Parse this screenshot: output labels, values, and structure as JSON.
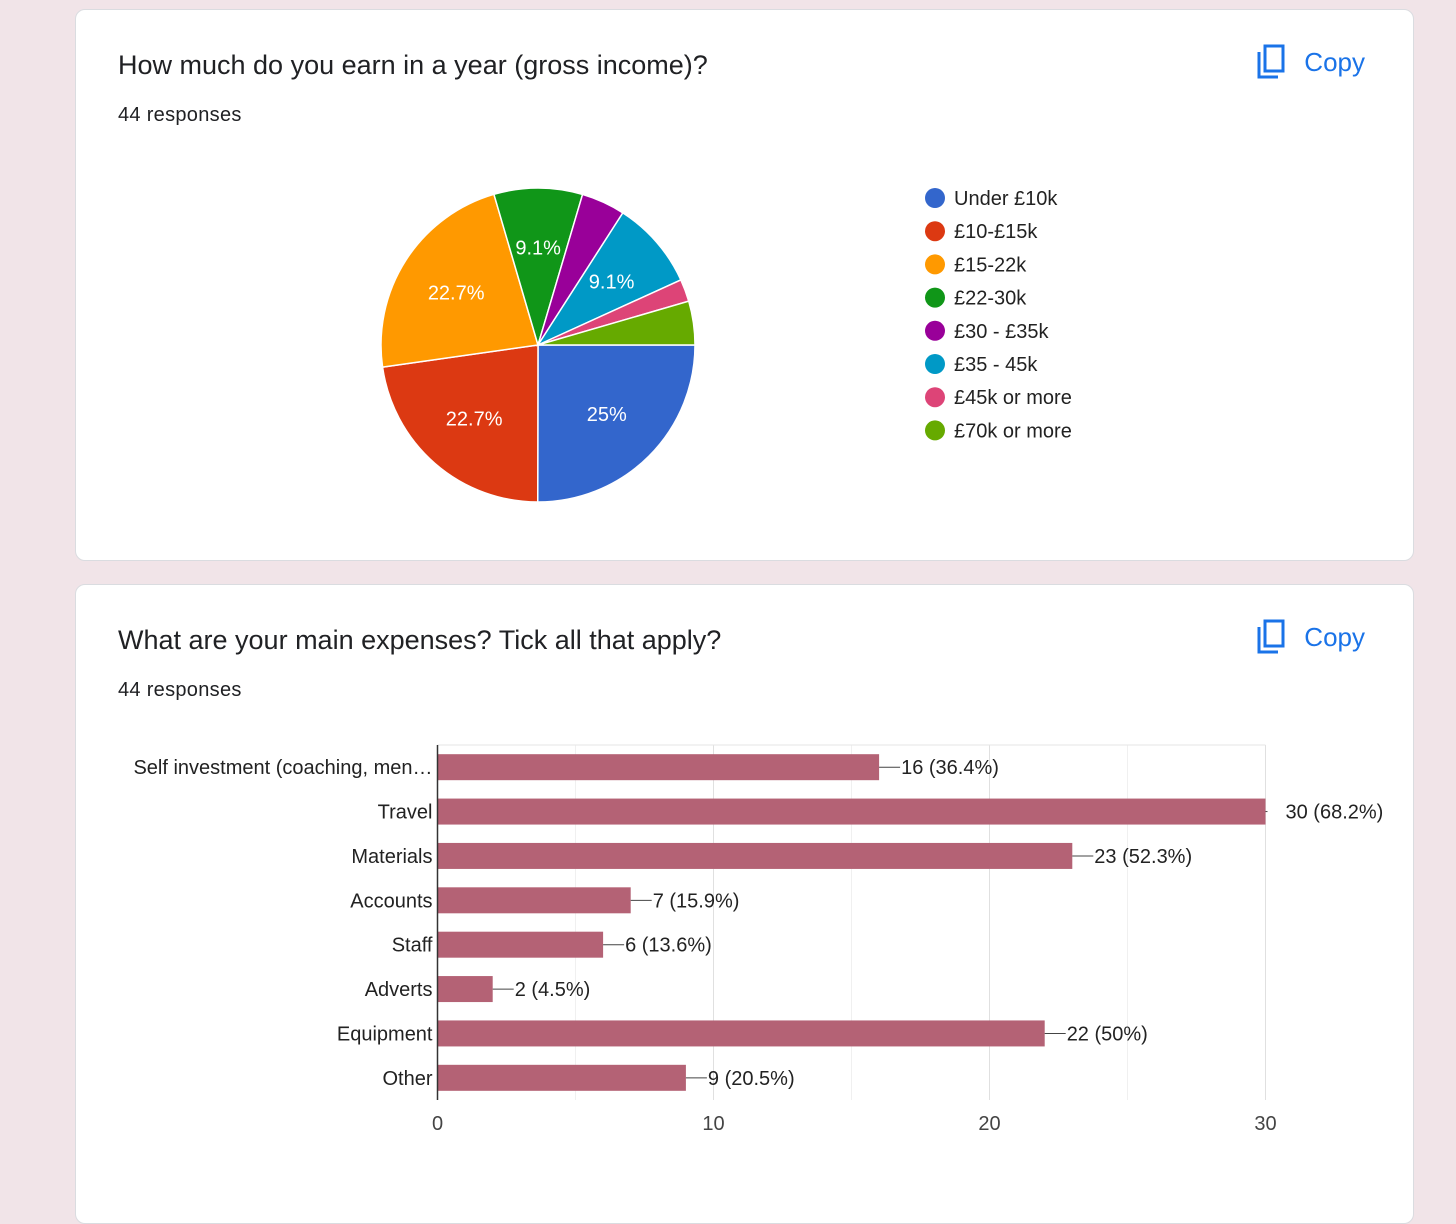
{
  "cards": [
    {
      "title": "How much do you earn in a year (gross income)?",
      "responses": "44 responses",
      "copy_label": "Copy",
      "icon": "content-copy-icon"
    },
    {
      "title": "What are your main expenses? Tick all that apply?",
      "responses": "44 responses",
      "copy_label": "Copy",
      "icon": "content-copy-icon"
    }
  ],
  "chart_data": [
    {
      "type": "pie",
      "slices": [
        {
          "label": "Under £10k",
          "value": 25.0,
          "data_label": "25%",
          "color": "#3366cc"
        },
        {
          "label": "£10-£15k",
          "value": 22.7,
          "data_label": "22.7%",
          "color": "#dc3912"
        },
        {
          "label": "£15-22k",
          "value": 22.7,
          "data_label": "22.7%",
          "color": "#ff9900"
        },
        {
          "label": "£22-30k",
          "value": 9.1,
          "data_label": "9.1%",
          "color": "#109618"
        },
        {
          "label": "£30 - £35k",
          "value": 4.5,
          "data_label": "",
          "color": "#990099"
        },
        {
          "label": "£35 - 45k",
          "value": 9.1,
          "data_label": "9.1%",
          "color": "#0099c6"
        },
        {
          "label": "£45k or more",
          "value": 2.3,
          "data_label": "",
          "color": "#dd4477"
        },
        {
          "label": "£70k or more",
          "value": 4.5,
          "data_label": "",
          "color": "#66aa00"
        }
      ],
      "legend_position": "right"
    },
    {
      "type": "bar",
      "orientation": "horizontal",
      "categories": [
        "Self investment (coaching, men…",
        "Travel",
        "Materials",
        "Accounts",
        "Staff",
        "Adverts",
        "Equipment",
        "Other"
      ],
      "values": [
        16,
        30,
        23,
        7,
        6,
        2,
        22,
        9
      ],
      "data_labels": [
        "16 (36.4%)",
        "30 (68.2%)",
        "23 (52.3%)",
        "7 (15.9%)",
        "6 (13.6%)",
        "2 (4.5%)",
        "22 (50%)",
        "9 (20.5%)"
      ],
      "xlim": [
        0,
        30
      ],
      "xticks": [
        "0",
        "10",
        "20",
        "30"
      ],
      "bar_color": "#b46275",
      "grid": true
    }
  ]
}
